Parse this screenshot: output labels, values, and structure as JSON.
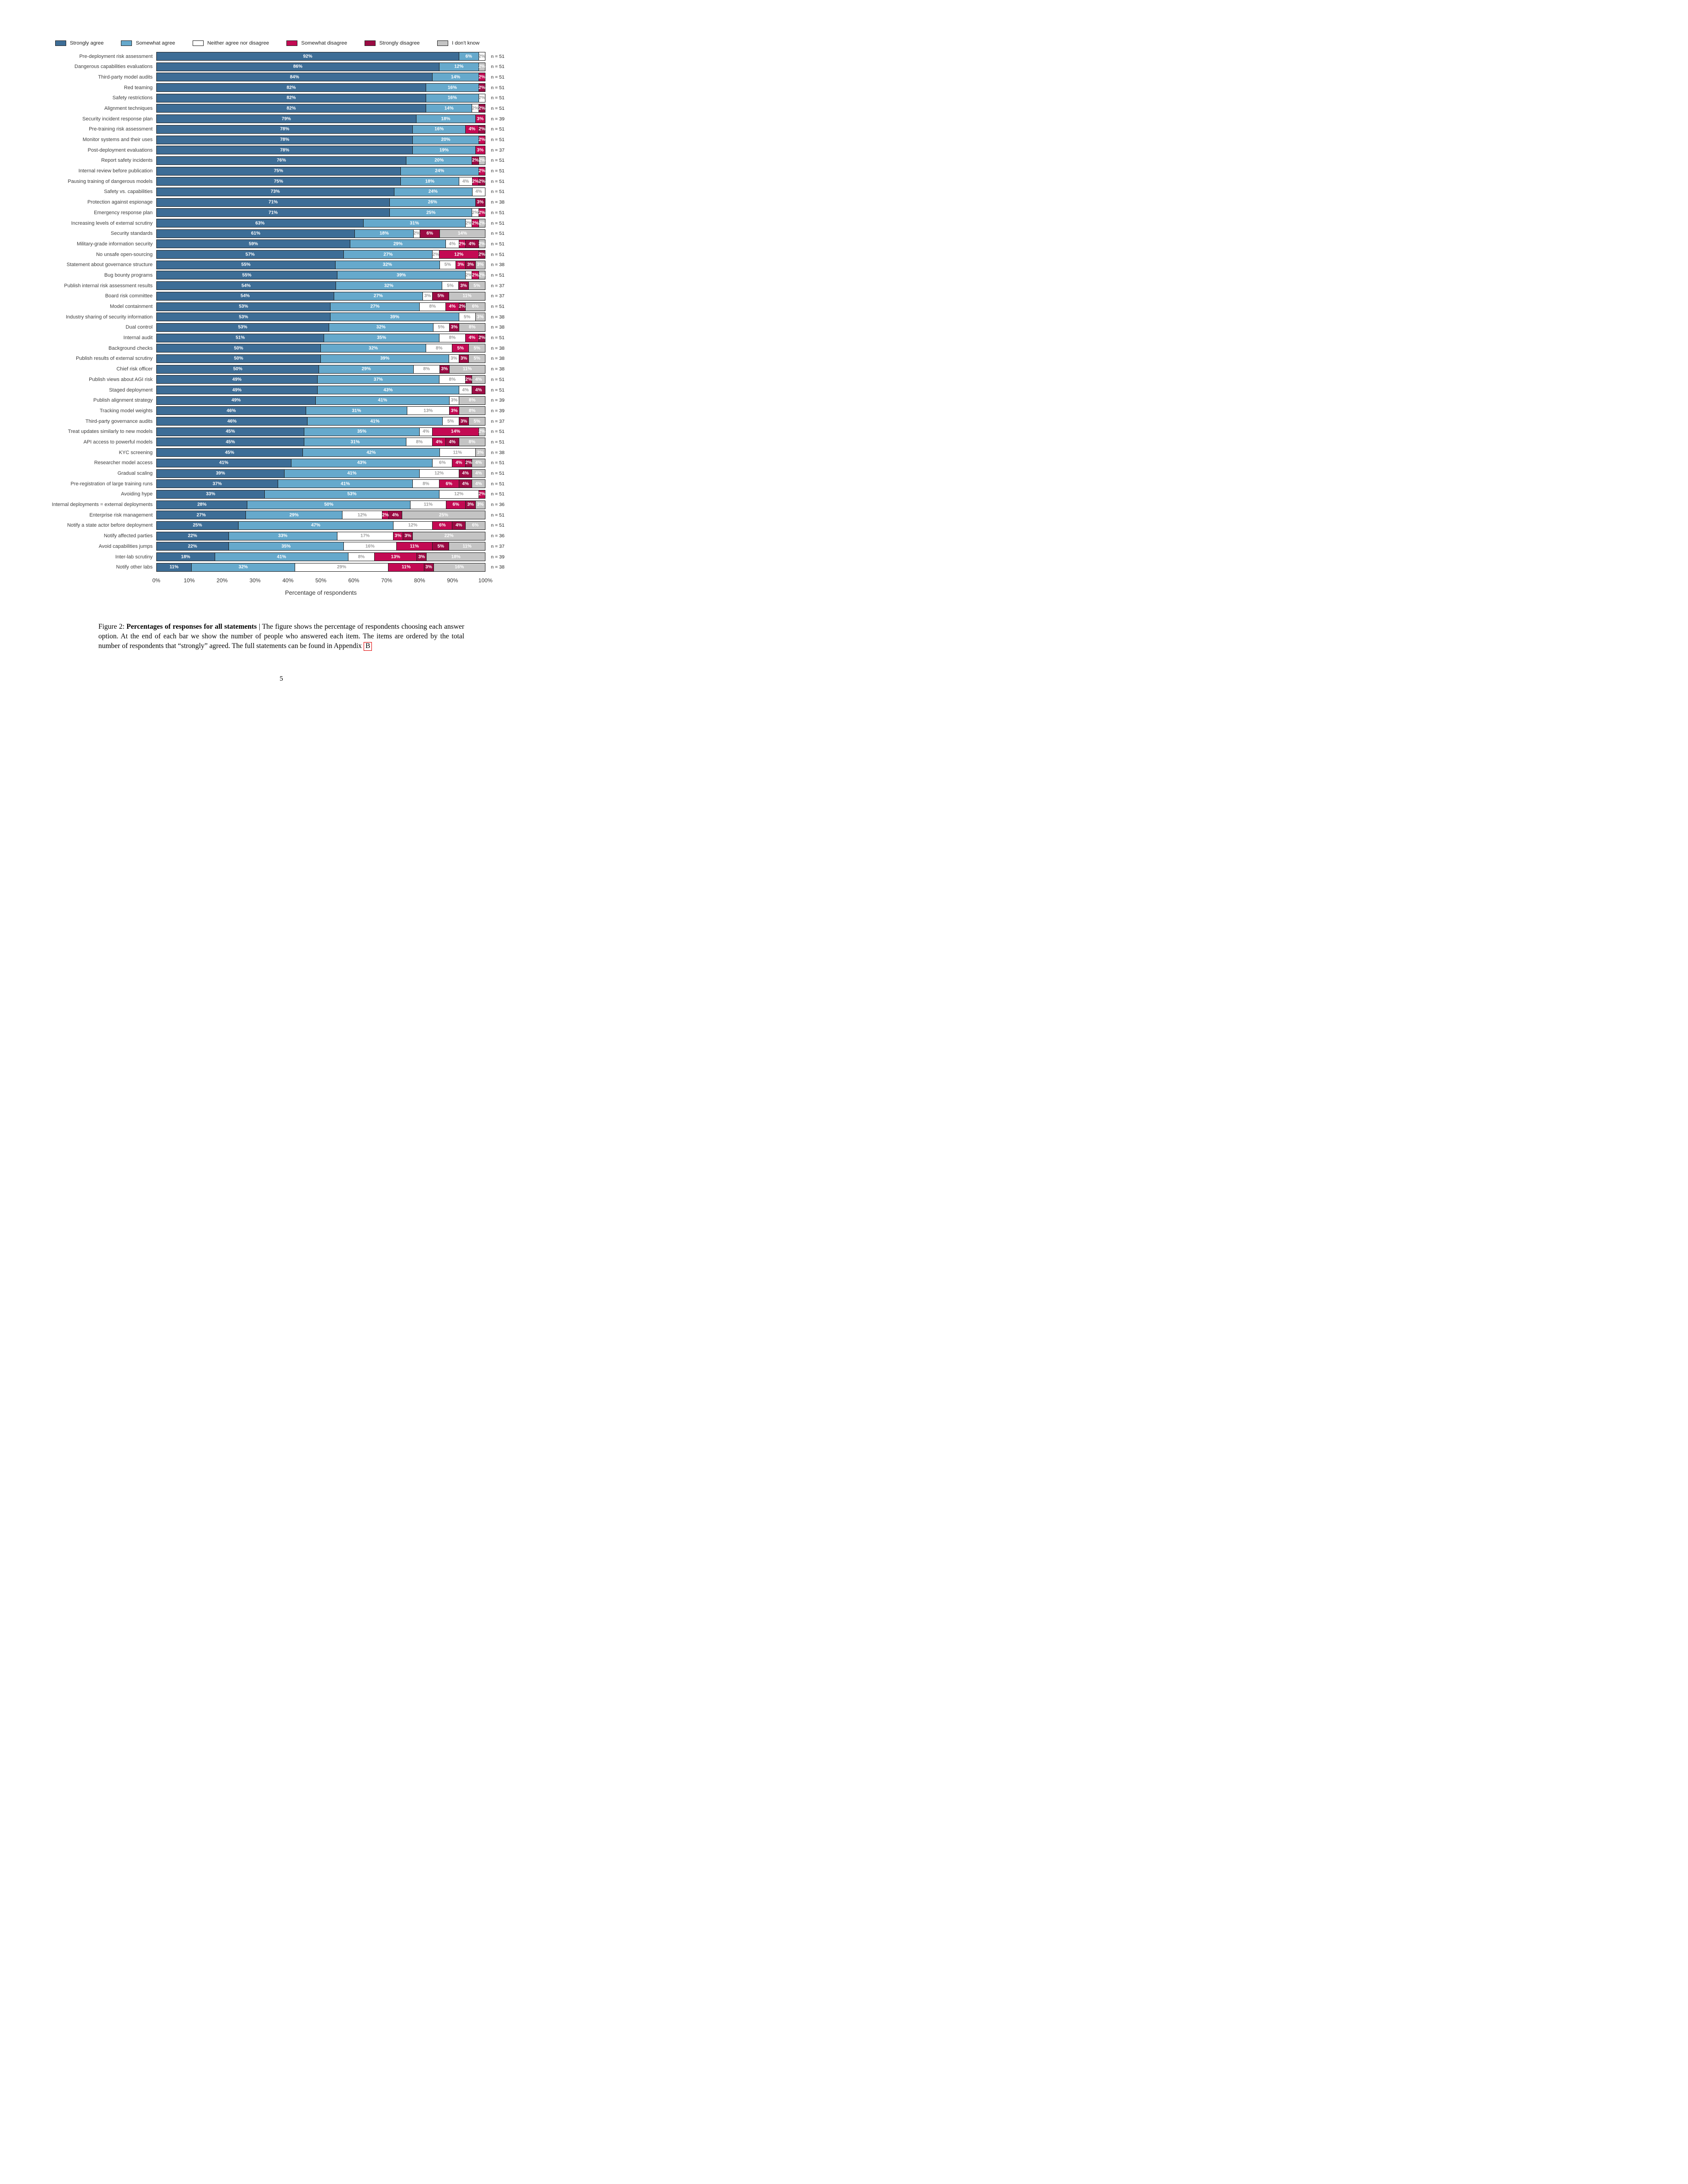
{
  "page": {
    "number": "5"
  },
  "caption": {
    "figure_label": "Figure 2: ",
    "title_bold": "Percentages of responses for all statements",
    "separator": " | ",
    "body": "The figure shows the percentage of respondents choosing each answer option. At the end of each bar we show the number of people who answered each item. The items are ordered by the total number of respondents that “strongly” agreed. The full statements can be found in Appendix ",
    "appendix_link": "B"
  },
  "chart_data": {
    "type": "bar",
    "subtype": "horizontal-stacked-likert",
    "xlabel": "Percentage of respondents",
    "xlim": [
      0,
      100
    ],
    "x_ticks": [
      "0%",
      "10%",
      "20%",
      "30%",
      "40%",
      "50%",
      "60%",
      "70%",
      "80%",
      "90%",
      "100%"
    ],
    "legend_position": "top",
    "grid": false,
    "n_prefix": "n = ",
    "categories": [
      {
        "key": "strongly-agree",
        "label": "Strongly agree",
        "color": "#3d6d96",
        "text_color": "#ffffff"
      },
      {
        "key": "somewhat-agree",
        "label": "Somewhat agree",
        "color": "#66a9cc",
        "text_color": "#ffffff"
      },
      {
        "key": "neither",
        "label": "Neither agree nor disagree",
        "color": "#ffffff",
        "text_color": "#9b9b9b"
      },
      {
        "key": "somewhat-disagree",
        "label": "Somewhat disagree",
        "color": "#c30a53",
        "text_color": "#ffffff"
      },
      {
        "key": "strongly-disagree",
        "label": "Strongly disagree",
        "color": "#9b0b44",
        "text_color": "#ffffff"
      },
      {
        "key": "dont-know",
        "label": "I don't know",
        "color": "#c4c4c4",
        "text_color": "#ffffff"
      }
    ],
    "rows": [
      {
        "label": "Pre-deployment risk assessment",
        "n": 51,
        "values": [
          92,
          6,
          2,
          0,
          0,
          0
        ]
      },
      {
        "label": "Dangerous capabilities evaluations",
        "n": 51,
        "values": [
          86,
          12,
          0,
          0,
          0,
          2
        ]
      },
      {
        "label": "Third-party model audits",
        "n": 51,
        "values": [
          84,
          14,
          0,
          2,
          0,
          0
        ]
      },
      {
        "label": "Red teaming",
        "n": 51,
        "values": [
          82,
          16,
          0,
          0,
          2,
          0
        ]
      },
      {
        "label": "Safety restrictions",
        "n": 51,
        "values": [
          82,
          16,
          2,
          0,
          0,
          0
        ]
      },
      {
        "label": "Alignment techniques",
        "n": 51,
        "values": [
          82,
          14,
          2,
          0,
          2,
          0
        ]
      },
      {
        "label": "Security incident response plan",
        "n": 39,
        "values": [
          79,
          18,
          0,
          3,
          0,
          0
        ]
      },
      {
        "label": "Pre-training risk assessment",
        "n": 51,
        "values": [
          78,
          16,
          0,
          4,
          2,
          0
        ]
      },
      {
        "label": "Monitor systems and their uses",
        "n": 51,
        "values": [
          78,
          20,
          0,
          2,
          0,
          0
        ]
      },
      {
        "label": "Post-deployment evaluations",
        "n": 37,
        "values": [
          78,
          19,
          0,
          3,
          0,
          0
        ]
      },
      {
        "label": "Report safety incidents",
        "n": 51,
        "values": [
          76,
          20,
          0,
          0,
          2,
          2
        ]
      },
      {
        "label": "Internal review before publication",
        "n": 51,
        "values": [
          75,
          24,
          0,
          2,
          0,
          0
        ]
      },
      {
        "label": "Pausing training of dangerous models",
        "n": 51,
        "values": [
          75,
          18,
          4,
          2,
          2,
          0
        ]
      },
      {
        "label": "Safety vs. capabilities",
        "n": 51,
        "values": [
          73,
          24,
          4,
          0,
          0,
          0
        ]
      },
      {
        "label": "Protection against espionage",
        "n": 38,
        "values": [
          71,
          26,
          0,
          0,
          3,
          0
        ]
      },
      {
        "label": "Emergency response plan",
        "n": 51,
        "values": [
          71,
          25,
          2,
          2,
          0,
          0
        ]
      },
      {
        "label": "Increasing levels of external scrutiny",
        "n": 51,
        "values": [
          63,
          31,
          2,
          2,
          0,
          2
        ]
      },
      {
        "label": "Security standards",
        "n": 51,
        "values": [
          61,
          18,
          2,
          0,
          6,
          14
        ]
      },
      {
        "label": "Military-grade information security",
        "n": 51,
        "values": [
          59,
          29,
          4,
          2,
          4,
          2
        ]
      },
      {
        "label": "No unsafe open-sourcing",
        "n": 51,
        "values": [
          57,
          27,
          2,
          12,
          2,
          0
        ]
      },
      {
        "label": "Statement about governance structure",
        "n": 38,
        "values": [
          55,
          32,
          5,
          3,
          3,
          3
        ]
      },
      {
        "label": "Bug bounty programs",
        "n": 51,
        "values": [
          55,
          39,
          2,
          2,
          0,
          2
        ]
      },
      {
        "label": "Publish internal risk assessment results",
        "n": 37,
        "values": [
          54,
          32,
          5,
          0,
          3,
          5
        ]
      },
      {
        "label": "Board risk committee",
        "n": 37,
        "values": [
          54,
          27,
          3,
          0,
          5,
          11
        ]
      },
      {
        "label": "Model containment",
        "n": 51,
        "values": [
          53,
          27,
          8,
          4,
          2,
          6
        ]
      },
      {
        "label": "Industry sharing of security information",
        "n": 38,
        "values": [
          53,
          39,
          5,
          0,
          0,
          3
        ]
      },
      {
        "label": "Dual control",
        "n": 38,
        "values": [
          53,
          32,
          5,
          0,
          3,
          8
        ]
      },
      {
        "label": "Internal audit",
        "n": 51,
        "values": [
          51,
          35,
          8,
          4,
          2,
          0
        ]
      },
      {
        "label": "Background checks",
        "n": 38,
        "values": [
          50,
          32,
          8,
          5,
          0,
          5
        ]
      },
      {
        "label": "Publish results of external scrutiny",
        "n": 38,
        "values": [
          50,
          39,
          3,
          0,
          3,
          5
        ]
      },
      {
        "label": "Chief risk officer",
        "n": 38,
        "values": [
          50,
          29,
          8,
          0,
          3,
          11
        ]
      },
      {
        "label": "Publish views about AGI risk",
        "n": 51,
        "values": [
          49,
          37,
          8,
          0,
          2,
          4
        ]
      },
      {
        "label": "Staged deployment",
        "n": 51,
        "values": [
          49,
          43,
          4,
          0,
          4,
          0
        ]
      },
      {
        "label": "Publish alignment strategy",
        "n": 39,
        "values": [
          49,
          41,
          3,
          0,
          0,
          8
        ]
      },
      {
        "label": "Tracking model weights",
        "n": 39,
        "values": [
          46,
          31,
          13,
          3,
          0,
          8
        ]
      },
      {
        "label": "Third-party governance audits",
        "n": 37,
        "values": [
          46,
          41,
          5,
          0,
          3,
          5
        ]
      },
      {
        "label": "Treat updates similarly to new models",
        "n": 51,
        "values": [
          45,
          35,
          4,
          14,
          0,
          2
        ]
      },
      {
        "label": "API access to powerful models",
        "n": 51,
        "values": [
          45,
          31,
          8,
          4,
          4,
          8
        ]
      },
      {
        "label": "KYC screening",
        "n": 38,
        "values": [
          45,
          42,
          11,
          0,
          0,
          3
        ]
      },
      {
        "label": "Researcher model access",
        "n": 51,
        "values": [
          41,
          43,
          6,
          4,
          2,
          4
        ]
      },
      {
        "label": "Gradual scaling",
        "n": 51,
        "values": [
          39,
          41,
          12,
          0,
          4,
          4
        ]
      },
      {
        "label": "Pre-registration of large training runs",
        "n": 51,
        "values": [
          37,
          41,
          8,
          6,
          4,
          4
        ]
      },
      {
        "label": "Avoiding hype",
        "n": 51,
        "values": [
          33,
          53,
          12,
          2,
          0,
          0
        ]
      },
      {
        "label": "Internal deployments = external deployments",
        "n": 36,
        "values": [
          28,
          50,
          11,
          6,
          3,
          3
        ]
      },
      {
        "label": "Enterprise risk management",
        "n": 51,
        "values": [
          27,
          29,
          12,
          2,
          4,
          25
        ]
      },
      {
        "label": "Notify a state actor before deployment",
        "n": 51,
        "values": [
          25,
          47,
          12,
          6,
          4,
          6
        ]
      },
      {
        "label": "Notify affected parties",
        "n": 36,
        "values": [
          22,
          33,
          17,
          3,
          3,
          22
        ]
      },
      {
        "label": "Avoid capabilities jumps",
        "n": 37,
        "values": [
          22,
          35,
          16,
          11,
          5,
          11
        ]
      },
      {
        "label": "Inter-lab scrutiny",
        "n": 39,
        "values": [
          18,
          41,
          8,
          13,
          3,
          18
        ]
      },
      {
        "label": "Notify other labs",
        "n": 38,
        "values": [
          11,
          32,
          29,
          11,
          3,
          16
        ]
      }
    ]
  }
}
